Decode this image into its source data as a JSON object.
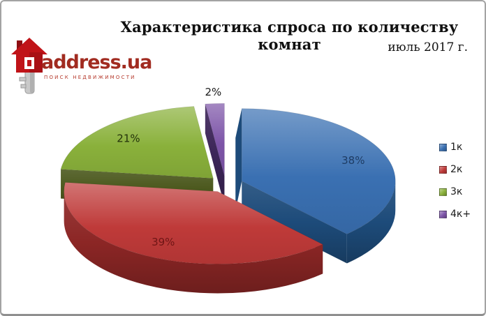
{
  "logo": {
    "brand": "address.ua",
    "tagline": "поиск недвижимости",
    "brand_color": "#a12b20",
    "tagline_color": "#b5382b",
    "house_color": "#c01318",
    "house_dark_color": "#8e0e12",
    "key_color": "#c9c9c9",
    "key_dark_color": "#9a9a9a"
  },
  "chart_data": {
    "type": "pie",
    "style": "3d-exploded",
    "title": "Характеристика спроса по количеству комнат",
    "subtitle": "июль 2017 г.",
    "unit": "%",
    "legend_position": "right",
    "background": "#ffffff",
    "slices": [
      {
        "label": "1к",
        "value": 38,
        "color": "#3a70b2",
        "side_color": "#1d4b7a",
        "label_color": "#1e3c64"
      },
      {
        "label": "2к",
        "value": 39,
        "color": "#bf3a39",
        "side_color": "#8c2625",
        "label_color": "#6e1515"
      },
      {
        "label": "3к",
        "value": 21,
        "color": "#8ab13b",
        "side_color": "#4c591e",
        "label_color": "#23320a"
      },
      {
        "label": "4к+",
        "value": 2,
        "color": "#7d55a8",
        "side_color": "#3c2558",
        "label_color": "#1a1a1a"
      }
    ]
  }
}
